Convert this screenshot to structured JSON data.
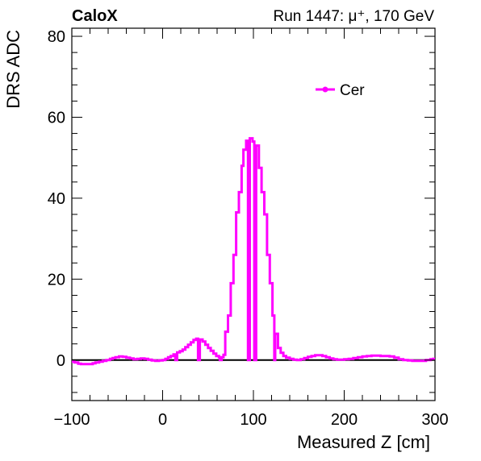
{
  "header": {
    "left_label": "CaloX",
    "right_label": "Run 1447:   μ⁺, 170 GeV"
  },
  "chart_data": {
    "type": "line",
    "title": "",
    "xlabel": "Measured Z [cm]",
    "ylabel": "DRS ADC",
    "xlim": [
      -100,
      300
    ],
    "ylim": [
      -10,
      82
    ],
    "x_ticks": [
      -100,
      0,
      100,
      200,
      300
    ],
    "x_tick_labels": [
      "−100",
      "0",
      "100",
      "200",
      "300"
    ],
    "y_ticks": [
      0,
      20,
      40,
      60,
      80
    ],
    "y_tick_labels": [
      "0",
      "20",
      "40",
      "60",
      "80"
    ],
    "grid": false,
    "zero_line": true,
    "legend_position": "top-right",
    "series": [
      {
        "name": "Cer",
        "color": "#ff00ff",
        "step": true,
        "points": [
          [
            -100,
            -0.4
          ],
          [
            -97,
            -0.6
          ],
          [
            -93,
            -0.9
          ],
          [
            -90,
            -1.0
          ],
          [
            -85,
            -1.0
          ],
          [
            -80,
            -1.0
          ],
          [
            -77,
            -0.8
          ],
          [
            -74,
            -0.6
          ],
          [
            -70,
            -0.4
          ],
          [
            -66,
            -0.2
          ],
          [
            -62,
            0.0
          ],
          [
            -58,
            0.3
          ],
          [
            -55,
            0.5
          ],
          [
            -52,
            0.7
          ],
          [
            -48,
            0.9
          ],
          [
            -44,
            0.8
          ],
          [
            -40,
            0.6
          ],
          [
            -36,
            0.4
          ],
          [
            -32,
            0.2
          ],
          [
            -28,
            0.3
          ],
          [
            -24,
            0.4
          ],
          [
            -20,
            0.3
          ],
          [
            -16,
            0.1
          ],
          [
            -12,
            -0.1
          ],
          [
            -8,
            -0.2
          ],
          [
            -4,
            -0.1
          ],
          [
            0,
            0.0
          ],
          [
            3,
            0.3
          ],
          [
            6,
            0.7
          ],
          [
            9,
            1.0
          ],
          [
            12,
            1.4
          ],
          [
            14,
            0.0
          ],
          [
            16,
            1.9
          ],
          [
            19,
            2.2
          ],
          [
            22,
            2.6
          ],
          [
            25,
            3.2
          ],
          [
            28,
            3.8
          ],
          [
            31,
            4.4
          ],
          [
            34,
            5.0
          ],
          [
            37,
            5.3
          ],
          [
            39,
            0.0
          ],
          [
            41,
            5.1
          ],
          [
            44,
            4.6
          ],
          [
            47,
            3.8
          ],
          [
            50,
            3.0
          ],
          [
            53,
            2.3
          ],
          [
            56,
            1.6
          ],
          [
            59,
            1.0
          ],
          [
            62,
            0.7
          ],
          [
            63,
            0.0
          ],
          [
            65,
            0.7
          ],
          [
            67,
            1.3
          ],
          [
            69,
            7.0
          ],
          [
            72,
            11.0
          ],
          [
            75,
            19.0
          ],
          [
            78,
            26.0
          ],
          [
            81,
            36.5
          ],
          [
            84,
            41.5
          ],
          [
            87,
            48.0
          ],
          [
            89,
            52.0
          ],
          [
            92,
            54.2
          ],
          [
            94,
            0.0
          ],
          [
            96,
            54.8
          ],
          [
            99,
            54.0
          ],
          [
            101,
            0.0
          ],
          [
            103,
            53.0
          ],
          [
            106,
            47.5
          ],
          [
            109,
            41.5
          ],
          [
            112,
            36.0
          ],
          [
            115,
            26.0
          ],
          [
            118,
            19.0
          ],
          [
            121,
            11.0
          ],
          [
            123,
            0.0
          ],
          [
            124,
            6.5
          ],
          [
            127,
            3.0
          ],
          [
            130,
            1.8
          ],
          [
            133,
            1.0
          ],
          [
            136,
            0.6
          ],
          [
            140,
            0.3
          ],
          [
            144,
            0.1
          ],
          [
            148,
            0.0
          ],
          [
            152,
            0.2
          ],
          [
            156,
            0.5
          ],
          [
            160,
            0.8
          ],
          [
            164,
            1.0
          ],
          [
            168,
            1.2
          ],
          [
            172,
            1.2
          ],
          [
            176,
            1.0
          ],
          [
            180,
            0.7
          ],
          [
            184,
            0.4
          ],
          [
            188,
            0.2
          ],
          [
            192,
            0.1
          ],
          [
            196,
            0.1
          ],
          [
            200,
            0.2
          ],
          [
            205,
            0.3
          ],
          [
            210,
            0.5
          ],
          [
            215,
            0.7
          ],
          [
            220,
            0.9
          ],
          [
            225,
            1.0
          ],
          [
            230,
            1.1
          ],
          [
            235,
            1.1
          ],
          [
            240,
            1.0
          ],
          [
            245,
            1.0
          ],
          [
            250,
            0.9
          ],
          [
            255,
            0.6
          ],
          [
            260,
            0.2
          ],
          [
            265,
            0.0
          ],
          [
            270,
            -0.1
          ],
          [
            275,
            -0.2
          ],
          [
            280,
            -0.2
          ],
          [
            285,
            -0.2
          ],
          [
            290,
            0.0
          ],
          [
            295,
            0.2
          ],
          [
            298,
            0.3
          ]
        ]
      }
    ]
  }
}
